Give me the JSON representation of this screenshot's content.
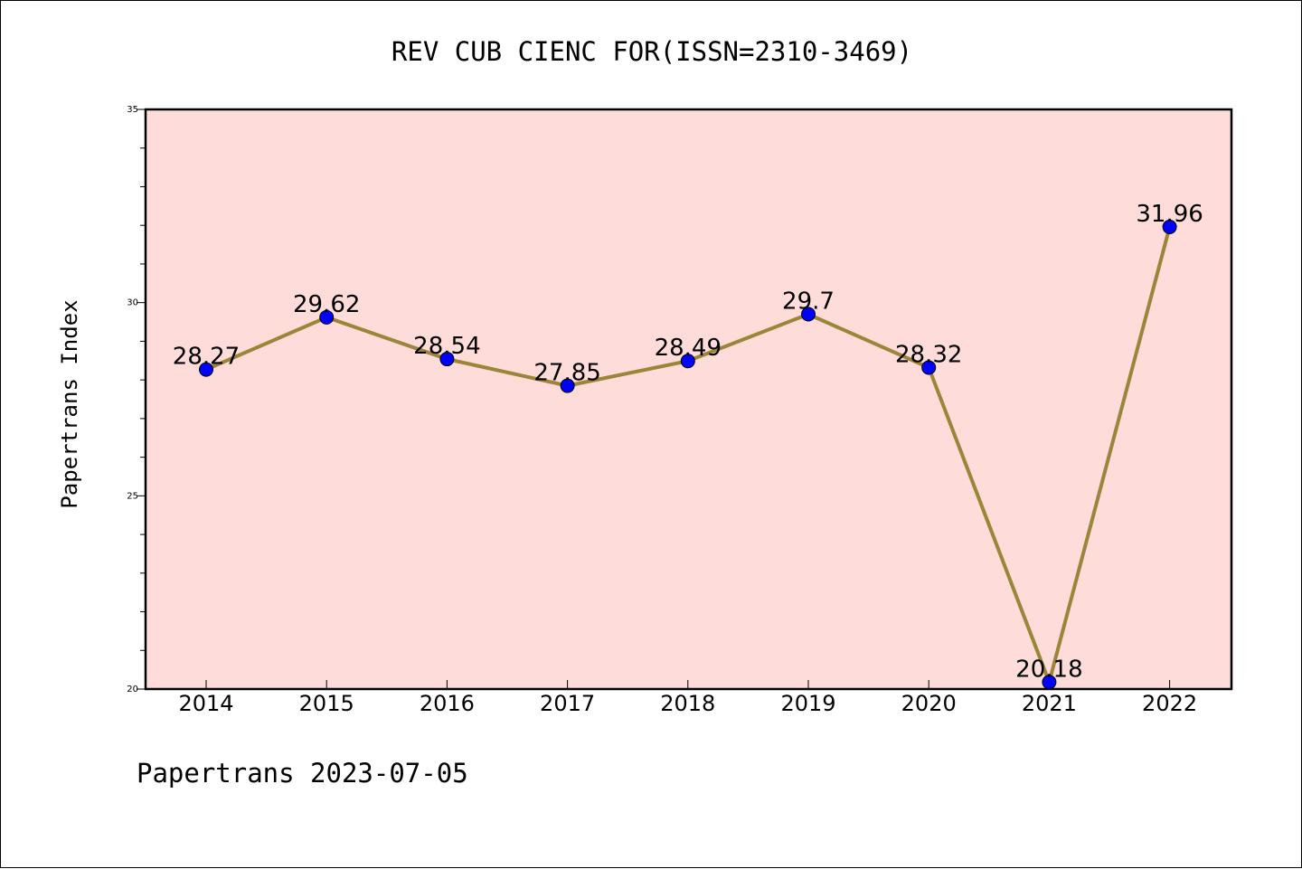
{
  "chart_data": {
    "type": "line",
    "title": "REV CUB CIENC FOR(ISSN=2310-3469)",
    "ylabel": "Papertrans Index",
    "xlabel": "",
    "categories": [
      "2014",
      "2015",
      "2016",
      "2017",
      "2018",
      "2019",
      "2020",
      "2021",
      "2022"
    ],
    "values": [
      28.27,
      29.62,
      28.54,
      27.85,
      28.49,
      29.7,
      28.32,
      20.18,
      31.96
    ],
    "value_labels": [
      "28.27",
      "29.62",
      "28.54",
      "27.85",
      "28.49",
      "29.7",
      "28.32",
      "20.18",
      "31.96"
    ],
    "ylim": [
      20,
      35
    ],
    "yticks": [
      "20",
      "25",
      "30",
      "35"
    ],
    "grid": false,
    "colors": {
      "plot_background": "#fddcda",
      "line": "#9c8438",
      "marker": "#0000ff"
    }
  },
  "footer": "Papertrans 2023-07-05"
}
